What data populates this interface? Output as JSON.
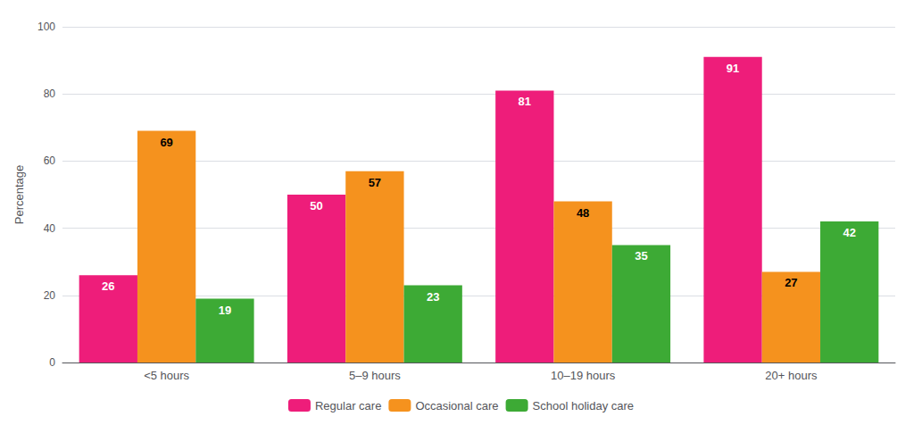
{
  "chart_data": {
    "type": "bar",
    "ylabel": "Percentage",
    "categories": [
      "<5 hours",
      "5–9 hours",
      "10–19 hours",
      "20+ hours"
    ],
    "series": [
      {
        "name": "Regular care",
        "color": "#EE1D7A",
        "values": [
          26,
          50,
          81,
          91
        ]
      },
      {
        "name": "Occasional care",
        "color": "#F5921E",
        "values": [
          69,
          57,
          48,
          27
        ]
      },
      {
        "name": "School holiday care",
        "color": "#3DAA35",
        "values": [
          19,
          23,
          35,
          42
        ]
      }
    ],
    "ylim": [
      0,
      100
    ],
    "yticks": [
      0,
      20,
      40,
      60,
      80,
      100
    ],
    "grid": true,
    "legend": "bottom",
    "data_labels": true
  }
}
